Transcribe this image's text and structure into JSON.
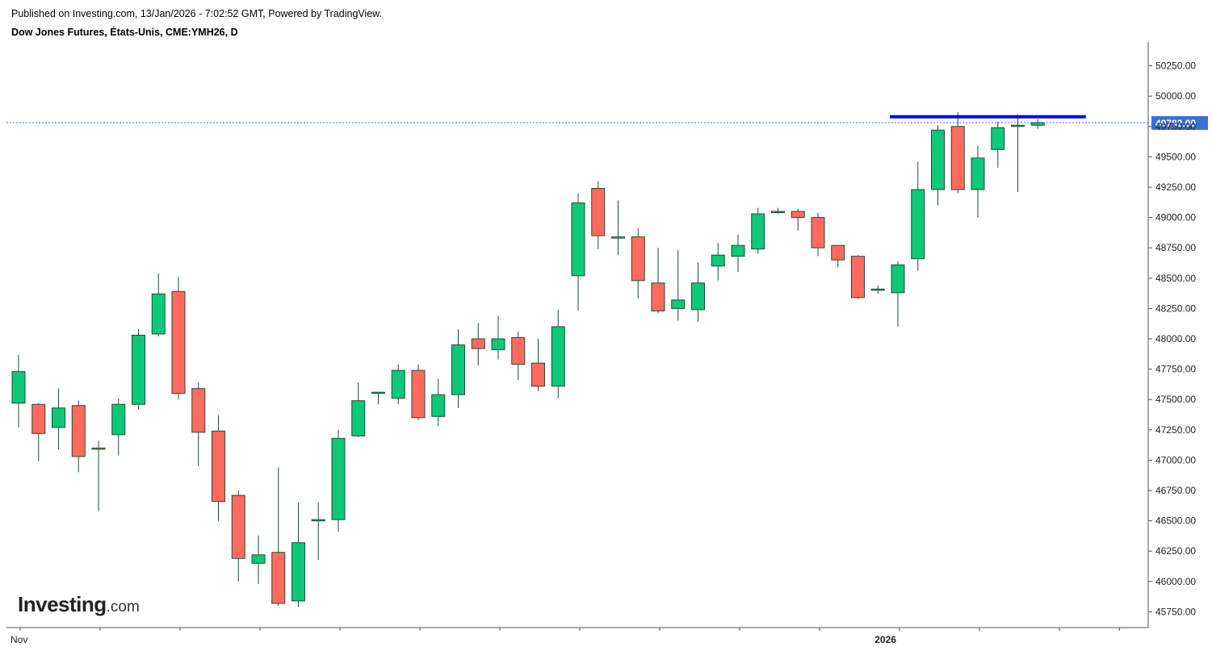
{
  "header": {
    "published": "Published on Investing.com, 13/Jan/2026 - 7:02:52 GMT, Powered by TradingView.",
    "symbol": "Dow Jones Futures, États-Unis, CME:YMH26, D"
  },
  "logo": {
    "main": "Investing",
    "suffix": ".com"
  },
  "colors": {
    "up": "#0dc77a",
    "down": "#ff6b5e",
    "wick": "#1f4d3a",
    "resistance": "#0000ff",
    "price_line": "#3b6fd6",
    "price_badge": "#3b6fd6"
  },
  "chart_data": {
    "type": "candlestick",
    "title": "Dow Jones Futures, États-Unis, CME:YMH26, D",
    "ylim": [
      45620,
      50420
    ],
    "y_ticks": [
      45750,
      46000,
      46250,
      46500,
      46750,
      47000,
      47250,
      47500,
      47750,
      48000,
      48250,
      48500,
      48750,
      49000,
      49250,
      49500,
      49750,
      50000,
      50250
    ],
    "y_tick_labels": [
      "45750.00",
      "46000.00",
      "46250.00",
      "46500.00",
      "46750.00",
      "47000.00",
      "47250.00",
      "47500.00",
      "47750.00",
      "48000.00",
      "48250.00",
      "48500.00",
      "48750.00",
      "49000.00",
      "49250.00",
      "49500.00",
      "49750.00",
      "50000.00",
      "50250.00"
    ],
    "x_labels": [
      {
        "index": 0,
        "text": "Nov"
      },
      {
        "index": 43,
        "text": "2026"
      }
    ],
    "x_tick_indices": [
      0,
      4,
      8,
      12,
      16,
      20,
      24,
      28,
      32,
      36,
      40,
      44,
      48,
      52,
      55
    ],
    "last_price": 49782,
    "last_price_label": "49782.00",
    "resistance": {
      "value": 49830,
      "from_index": 44,
      "to_index": 53
    },
    "candles": [
      {
        "o": 47470,
        "h": 47870,
        "l": 47270,
        "c": 47730
      },
      {
        "o": 47460,
        "h": 47470,
        "l": 46990,
        "c": 47220
      },
      {
        "o": 47270,
        "h": 47590,
        "l": 47090,
        "c": 47430
      },
      {
        "o": 47450,
        "h": 47490,
        "l": 46900,
        "c": 47030
      },
      {
        "o": 47100,
        "h": 47160,
        "l": 46580,
        "c": 47090
      },
      {
        "o": 47210,
        "h": 47510,
        "l": 47040,
        "c": 47460
      },
      {
        "o": 47460,
        "h": 48080,
        "l": 47420,
        "c": 48030
      },
      {
        "o": 48040,
        "h": 48540,
        "l": 48020,
        "c": 48370
      },
      {
        "o": 48390,
        "h": 48510,
        "l": 47500,
        "c": 47550
      },
      {
        "o": 47590,
        "h": 47640,
        "l": 46950,
        "c": 47230
      },
      {
        "o": 47240,
        "h": 47370,
        "l": 46500,
        "c": 46660
      },
      {
        "o": 46710,
        "h": 46750,
        "l": 46000,
        "c": 46190
      },
      {
        "o": 46150,
        "h": 46380,
        "l": 45980,
        "c": 46220
      },
      {
        "o": 46240,
        "h": 46940,
        "l": 45800,
        "c": 45820
      },
      {
        "o": 45840,
        "h": 46650,
        "l": 45790,
        "c": 46320
      },
      {
        "o": 46500,
        "h": 46650,
        "l": 46180,
        "c": 46510
      },
      {
        "o": 46510,
        "h": 47250,
        "l": 46410,
        "c": 47180
      },
      {
        "o": 47200,
        "h": 47640,
        "l": 47190,
        "c": 47490
      },
      {
        "o": 47550,
        "h": 47560,
        "l": 47460,
        "c": 47560
      },
      {
        "o": 47510,
        "h": 47790,
        "l": 47460,
        "c": 47740
      },
      {
        "o": 47740,
        "h": 47790,
        "l": 47330,
        "c": 47350
      },
      {
        "o": 47360,
        "h": 47670,
        "l": 47280,
        "c": 47540
      },
      {
        "o": 47540,
        "h": 48080,
        "l": 47430,
        "c": 47950
      },
      {
        "o": 48000,
        "h": 48130,
        "l": 47780,
        "c": 47920
      },
      {
        "o": 47910,
        "h": 48190,
        "l": 47830,
        "c": 48000
      },
      {
        "o": 48010,
        "h": 48060,
        "l": 47660,
        "c": 47790
      },
      {
        "o": 47800,
        "h": 48000,
        "l": 47570,
        "c": 47610
      },
      {
        "o": 47610,
        "h": 48240,
        "l": 47510,
        "c": 48100
      },
      {
        "o": 48520,
        "h": 49200,
        "l": 48230,
        "c": 49120
      },
      {
        "o": 49240,
        "h": 49300,
        "l": 48740,
        "c": 48850
      },
      {
        "o": 48840,
        "h": 49140,
        "l": 48690,
        "c": 48830
      },
      {
        "o": 48840,
        "h": 48910,
        "l": 48330,
        "c": 48480
      },
      {
        "o": 48460,
        "h": 48750,
        "l": 48210,
        "c": 48230
      },
      {
        "o": 48250,
        "h": 48730,
        "l": 48150,
        "c": 48320
      },
      {
        "o": 48240,
        "h": 48630,
        "l": 48140,
        "c": 48460
      },
      {
        "o": 48600,
        "h": 48790,
        "l": 48480,
        "c": 48690
      },
      {
        "o": 48680,
        "h": 48860,
        "l": 48550,
        "c": 48770
      },
      {
        "o": 48740,
        "h": 49080,
        "l": 48700,
        "c": 49030
      },
      {
        "o": 49050,
        "h": 49080,
        "l": 49030,
        "c": 49050
      },
      {
        "o": 49050,
        "h": 49070,
        "l": 48890,
        "c": 49000
      },
      {
        "o": 49000,
        "h": 49040,
        "l": 48680,
        "c": 48750
      },
      {
        "o": 48770,
        "h": 48770,
        "l": 48590,
        "c": 48650
      },
      {
        "o": 48680,
        "h": 48690,
        "l": 48330,
        "c": 48340
      },
      {
        "o": 48410,
        "h": 48440,
        "l": 48370,
        "c": 48410
      },
      {
        "o": 48380,
        "h": 48640,
        "l": 48100,
        "c": 48610
      },
      {
        "o": 48660,
        "h": 49460,
        "l": 48560,
        "c": 49230
      },
      {
        "o": 49230,
        "h": 49760,
        "l": 49100,
        "c": 49720
      },
      {
        "o": 49750,
        "h": 49870,
        "l": 49200,
        "c": 49230
      },
      {
        "o": 49230,
        "h": 49590,
        "l": 49000,
        "c": 49490
      },
      {
        "o": 49560,
        "h": 49790,
        "l": 49410,
        "c": 49740
      },
      {
        "o": 49750,
        "h": 49850,
        "l": 49210,
        "c": 49760
      },
      {
        "o": 49760,
        "h": 49810,
        "l": 49730,
        "c": 49782
      }
    ]
  }
}
